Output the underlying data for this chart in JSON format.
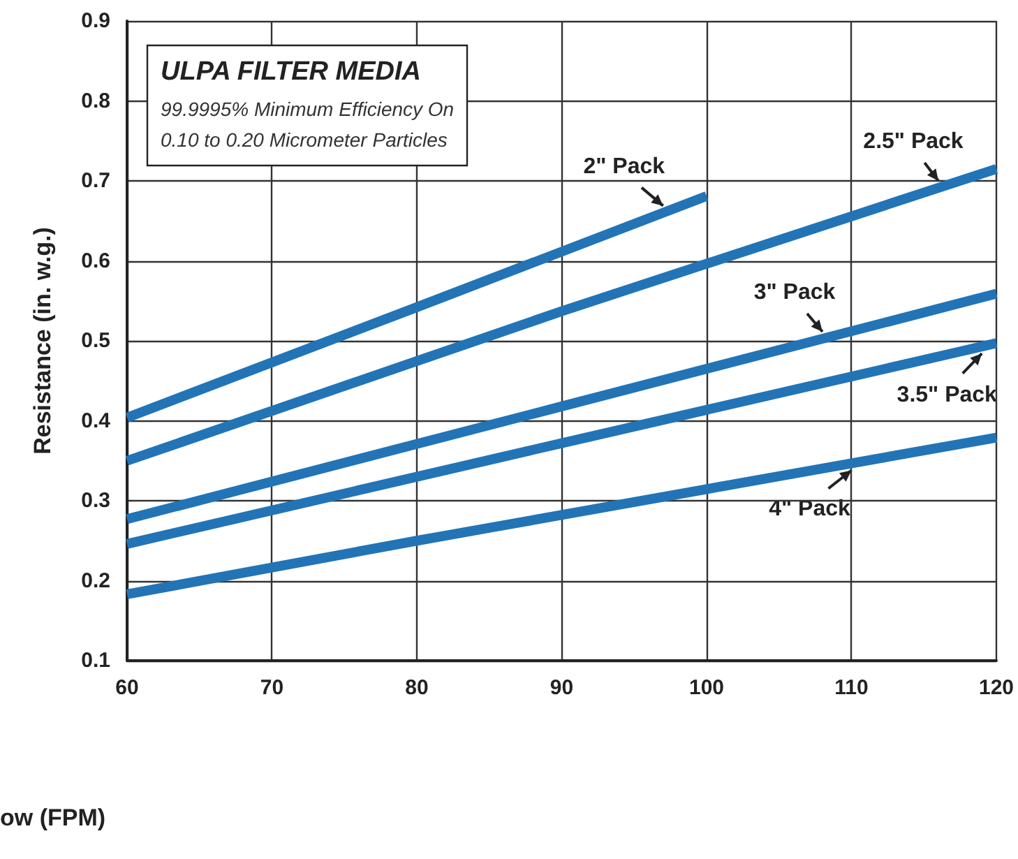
{
  "chart_data": {
    "type": "line",
    "title": "ULPA FILTER MEDIA",
    "subtitle": "99.9995% Minimum Efficiency On\n0.10 to 0.20 Micrometer Particles",
    "xlabel": "ow (FPM)",
    "ylabel": "Resistance (in. w.g.)",
    "series": [
      {
        "name": "2\" Pack",
        "color": "#2274b6",
        "x": [
          60,
          80,
          100
        ],
        "values": [
          0.404,
          0.542,
          0.681
        ]
      },
      {
        "name": "2.5\" Pack",
        "color": "#2274b6",
        "x": [
          60,
          90,
          120
        ],
        "values": [
          0.35,
          0.537,
          0.715
        ]
      },
      {
        "name": "3\" Pack",
        "color": "#2274b6",
        "x": [
          60,
          90,
          120
        ],
        "values": [
          0.277,
          0.418,
          0.559
        ]
      },
      {
        "name": "3.5\" Pack",
        "color": "#2274b6",
        "x": [
          60,
          90,
          120
        ],
        "values": [
          0.246,
          0.372,
          0.497
        ]
      },
      {
        "name": "4\" Pack",
        "color": "#2274b6",
        "x": [
          60,
          80,
          120
        ],
        "values": [
          0.183,
          0.25,
          0.379
        ]
      }
    ],
    "xlim": [
      60,
      120
    ],
    "xticks": [
      60,
      70,
      80,
      90,
      100,
      110,
      120
    ],
    "ylim": [
      0.1,
      0.9
    ],
    "yticks": [
      0.1,
      0.2,
      0.3,
      0.4,
      0.5,
      0.6,
      0.7,
      0.8,
      0.9
    ],
    "grid": true,
    "legend": false,
    "marker": "none",
    "line_style": "solid"
  }
}
